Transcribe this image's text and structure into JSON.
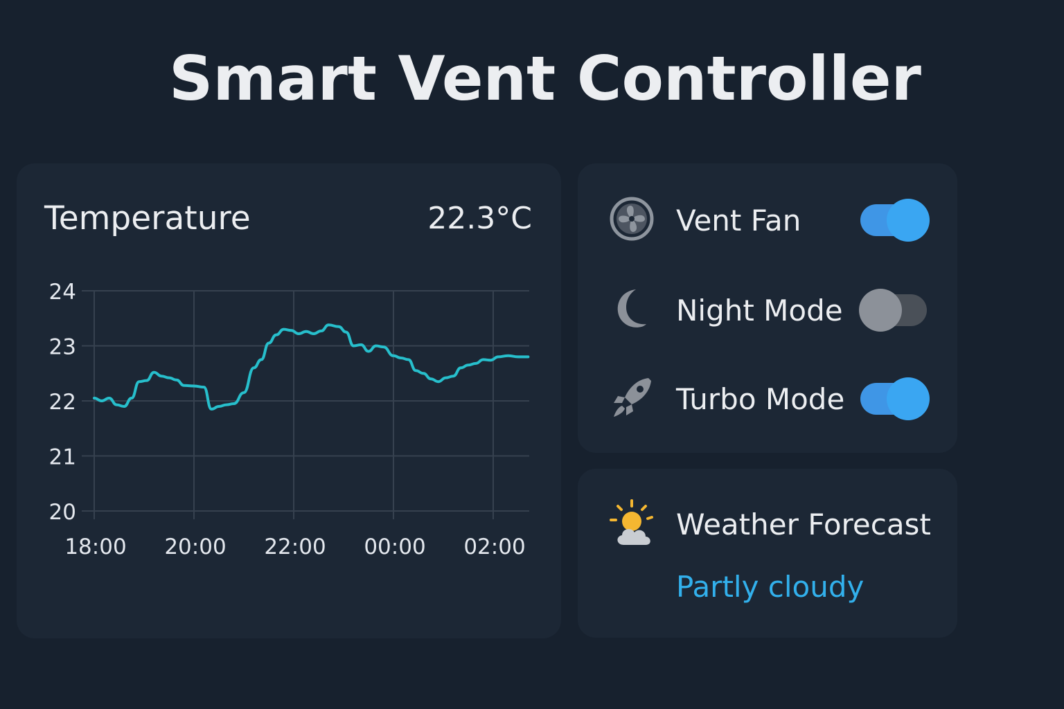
{
  "app": {
    "title": "Smart Vent Controller"
  },
  "temperature": {
    "title": "Temperature",
    "current": "22.3°C"
  },
  "chart_data": {
    "type": "line",
    "title": "Temperature",
    "x_tick_labels": [
      "18:00",
      "20:00",
      "22:00",
      "00:00",
      "02:00"
    ],
    "y_tick_labels": [
      "24",
      "23",
      "22",
      "21",
      "20"
    ],
    "ylim": [
      20,
      24
    ],
    "grid": true,
    "line_color": "#27bfcc",
    "series": [
      {
        "x_hours": [
          0,
          0.15,
          0.3,
          0.45,
          0.6,
          0.75,
          0.9,
          1.05,
          1.2,
          1.35,
          1.5,
          1.65,
          1.8,
          2.0,
          2.2,
          2.35,
          2.5,
          2.65,
          2.8,
          3.0,
          3.2,
          3.35,
          3.5,
          3.65,
          3.8,
          3.95,
          4.1,
          4.25,
          4.4,
          4.55,
          4.7,
          4.9,
          5.05,
          5.2,
          5.35,
          5.5,
          5.65,
          5.8,
          6.0,
          6.15,
          6.3,
          6.45,
          6.6,
          6.75,
          6.9,
          7.05,
          7.2,
          7.35,
          7.5,
          7.65,
          7.8,
          7.95,
          8.1,
          8.3,
          8.5,
          8.7
        ],
        "values": [
          22.05,
          22.0,
          22.05,
          21.93,
          21.9,
          22.05,
          22.35,
          22.37,
          22.52,
          22.45,
          22.42,
          22.38,
          22.28,
          22.27,
          22.25,
          21.85,
          21.9,
          21.93,
          21.95,
          22.15,
          22.6,
          22.75,
          23.05,
          23.2,
          23.3,
          23.28,
          23.22,
          23.26,
          23.22,
          23.27,
          23.38,
          23.35,
          23.25,
          23.0,
          23.02,
          22.9,
          23.0,
          22.98,
          22.82,
          22.78,
          22.75,
          22.55,
          22.5,
          22.4,
          22.35,
          22.42,
          22.45,
          22.6,
          22.65,
          22.68,
          22.75,
          22.74,
          22.8,
          22.82,
          22.8,
          22.8
        ]
      }
    ]
  },
  "controls": {
    "items": [
      {
        "label": "Vent Fan",
        "icon": "fan-icon",
        "state": "on"
      },
      {
        "label": "Night Mode",
        "icon": "moon-icon",
        "state": "off"
      },
      {
        "label": "Turbo Mode",
        "icon": "rocket-icon",
        "state": "on"
      }
    ]
  },
  "weather": {
    "label": "Weather Forecast",
    "status": "Partly cloudy",
    "icon": "partly-cloudy-icon"
  },
  "colors": {
    "background": "#17212e",
    "card": "#1c2735",
    "accent": "#3aa6f2",
    "chart_line": "#27bfcc",
    "status_text": "#32b0ec"
  }
}
